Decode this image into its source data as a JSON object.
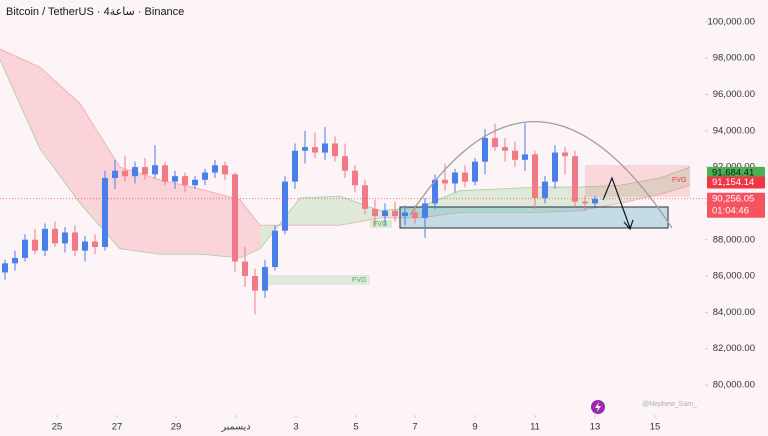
{
  "chart_data": {
    "type": "candlestick",
    "title": "Bitcoin / TetherUS · 4ساعة · Binance",
    "watermark": "@Nephew_Sam_",
    "annotations": [
      "FVG",
      "FVG",
      "FVG"
    ],
    "xlim": [
      -0.5,
      70.5
    ],
    "ylim": [
      78350,
      101200
    ],
    "yticks": [
      {
        "value": 80000,
        "label": "80,000.00"
      },
      {
        "value": 82000,
        "label": "82,000.00"
      },
      {
        "value": 84000,
        "label": "84,000.00"
      },
      {
        "value": 86000,
        "label": "86,000.00"
      },
      {
        "value": 88000,
        "label": "88,000.00"
      },
      {
        "value": 90000,
        "label": "90,000.00"
      },
      {
        "value": 92000,
        "label": "92,000.00"
      },
      {
        "value": 94000,
        "label": "94,000.00"
      },
      {
        "value": 96000,
        "label": "96,000.00"
      },
      {
        "value": 98000,
        "label": "98,000.00"
      },
      {
        "value": 100000,
        "label": "100,000.00"
      }
    ],
    "xticks": [
      {
        "value": 5.2,
        "label": "25"
      },
      {
        "value": 11.2,
        "label": "27"
      },
      {
        "value": 17.1,
        "label": "29"
      },
      {
        "value": 23.1,
        "label": "ديسمبر"
      },
      {
        "value": 29.1,
        "label": "3"
      },
      {
        "value": 35.1,
        "label": "5"
      },
      {
        "value": 41,
        "label": "7"
      },
      {
        "value": 47,
        "label": "9"
      },
      {
        "value": 53,
        "label": "11"
      },
      {
        "value": 59,
        "label": "13"
      },
      {
        "value": 65,
        "label": "15"
      }
    ],
    "up_color": "#4a7ee8",
    "down_color": "#f07a88",
    "open": [
      86200,
      86700,
      87000,
      88000,
      87400,
      88600,
      87800,
      88400,
      87400,
      87900,
      87600,
      91400,
      91800,
      91500,
      92000,
      91600,
      92100,
      91200,
      91500,
      91000,
      91300,
      91700,
      92100,
      91600,
      86800,
      86000,
      85200,
      86500,
      88500,
      91200,
      92900,
      93100,
      92800,
      93300,
      92600,
      91800,
      91000,
      89700,
      89300,
      89600,
      89300,
      89500,
      89200,
      90000,
      91300,
      91100,
      91700,
      91200,
      92300,
      93600,
      93100,
      92900,
      92400,
      92700,
      90300,
      91200,
      92800,
      92600,
      90100,
      90000
    ],
    "high": [
      86900,
      87400,
      88300,
      88600,
      88900,
      89000,
      88700,
      88800,
      88200,
      88300,
      91800,
      92400,
      92600,
      92300,
      92500,
      93200,
      92300,
      91800,
      91700,
      91500,
      91900,
      92400,
      92300,
      91700,
      87600,
      86400,
      86900,
      88800,
      91500,
      93300,
      94000,
      93900,
      94200,
      93700,
      93300,
      92100,
      91300,
      90200,
      90000,
      90100,
      89900,
      89900,
      90300,
      91600,
      92200,
      91900,
      92100,
      92500,
      94100,
      94400,
      93600,
      93400,
      94400,
      92900,
      91500,
      93200,
      93100,
      92900,
      90400,
      90400
    ],
    "low": [
      85800,
      86300,
      86800,
      87200,
      87100,
      87600,
      87300,
      87100,
      86800,
      87200,
      87400,
      90800,
      91200,
      91100,
      91300,
      91400,
      91000,
      90800,
      90600,
      90800,
      91000,
      91400,
      91300,
      86200,
      85400,
      83900,
      84800,
      86300,
      88300,
      90800,
      92200,
      92500,
      92400,
      92300,
      91400,
      90600,
      89400,
      88700,
      88800,
      89000,
      88800,
      88900,
      88100,
      89700,
      90700,
      90600,
      90900,
      91000,
      91600,
      92900,
      92300,
      92000,
      91800,
      89700,
      90000,
      90800,
      91600,
      89800,
      89600,
      89800
    ],
    "close": [
      86700,
      87000,
      88000,
      87400,
      88600,
      87800,
      88400,
      87400,
      87900,
      87600,
      91400,
      91800,
      91500,
      92000,
      91600,
      92100,
      91200,
      91500,
      91000,
      91300,
      91700,
      92100,
      91600,
      86800,
      86000,
      85200,
      86500,
      88500,
      91200,
      92900,
      93100,
      92800,
      93300,
      92600,
      91800,
      91000,
      89700,
      89300,
      89600,
      89300,
      89500,
      89200,
      90000,
      91300,
      91100,
      91700,
      91200,
      92300,
      93600,
      93100,
      92900,
      92400,
      92700,
      90300,
      91200,
      92800,
      92600,
      90100,
      90000,
      90256
    ],
    "cloud": {
      "x": [
        -0.5,
        3.5,
        7.5,
        11.5,
        15.5,
        19.5,
        23.5,
        25.5,
        29.5,
        33.5,
        37.5,
        41.5,
        45.5,
        49.5,
        53.5,
        57.5,
        61.5,
        65.5,
        68.5
      ],
      "span_b": [
        98500,
        97500,
        95500,
        92000,
        91300,
        90800,
        90200,
        88800,
        88800,
        88800,
        89200,
        89200,
        89500,
        89500,
        89500,
        89600,
        90000,
        90500,
        91000
      ],
      "span_a": [
        97900,
        93000,
        90000,
        87500,
        87200,
        87200,
        87000,
        87500,
        90300,
        90400,
        89600,
        89800,
        90700,
        90800,
        90900,
        90900,
        91000,
        91400,
        92000
      ],
      "bear_color": "rgba(242,54,69,0.17)",
      "bull_color": "rgba(76,175,80,0.17)"
    },
    "price_tags": [
      {
        "value": 91684.41,
        "label": "91,684.41",
        "color": "#4caf50"
      },
      {
        "value": 91154.14,
        "label": "91,154.14",
        "color": "#f23645"
      },
      {
        "value": 90256.05,
        "label": "90,256.05",
        "color": "#f7525f"
      }
    ],
    "countdown": "01:04:46"
  }
}
